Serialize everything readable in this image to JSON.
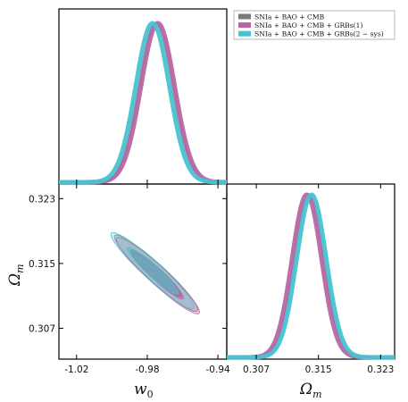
{
  "chart_data": {
    "type": "triangle",
    "params": {
      "w0": {
        "label_main": "w",
        "label_sub": "0",
        "range": [
          -1.03,
          -0.935
        ],
        "ticks": [
          -1.02,
          -0.98,
          -0.94
        ],
        "tick_labels": [
          "-1.02",
          "-0.98",
          "-0.94"
        ]
      },
      "Om": {
        "label_main": "Ω",
        "label_sub": "m",
        "range": [
          0.3032,
          0.3248
        ],
        "ticks": [
          0.307,
          0.315,
          0.323
        ],
        "tick_labels": [
          "0.307",
          "0.315",
          "0.323"
        ]
      }
    },
    "legend": {
      "placement": "top-right"
    },
    "series": [
      {
        "name": "SNIa + BAO + CMB",
        "color": "#7a7a7a",
        "w0_mean": -0.975,
        "w0_sigma": 0.0095,
        "Om_mean": 0.3138,
        "Om_sigma": 0.0019,
        "corr": -0.95
      },
      {
        "name": "SNIa + BAO + CMB + GRBs(1)",
        "color": "#b766a3",
        "w0_mean": -0.974,
        "w0_sigma": 0.0095,
        "Om_mean": 0.3135,
        "Om_sigma": 0.0019,
        "corr": -0.95
      },
      {
        "name": "SNIa + BAO + CMB + GRBs(2 − sys)",
        "color": "#47c3d2",
        "w0_mean": -0.977,
        "w0_sigma": 0.0095,
        "Om_mean": 0.3141,
        "Om_sigma": 0.0019,
        "corr": -0.95
      }
    ]
  }
}
